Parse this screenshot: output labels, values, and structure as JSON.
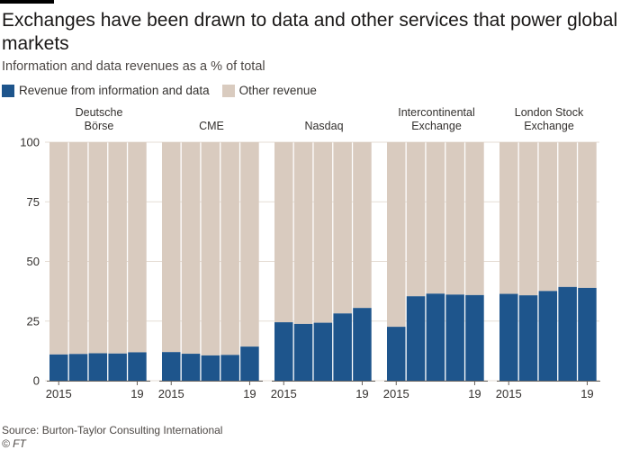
{
  "title": "Exchanges have been drawn to data and other services that power global markets",
  "subtitle": "Information and data revenues as a % of total",
  "legend": {
    "data_label": "Revenue from information and data",
    "other_label": "Other revenue"
  },
  "source": "Source: Burton-Taylor Consulting International",
  "credit": "© FT",
  "colors": {
    "data": "#1e558c",
    "other": "#d9cbbf",
    "grid": "#e6ddd5",
    "axis": "#66605c",
    "text": "#33302e"
  },
  "chart_data": {
    "type": "bar",
    "stacked": true,
    "ylim": [
      0,
      100
    ],
    "yticks": [
      0,
      25,
      50,
      75,
      100
    ],
    "x_tick_labels": [
      "2015",
      "19"
    ],
    "grid": true,
    "legend_position": "top-left",
    "series_names": [
      "Revenue from information and data",
      "Other revenue"
    ],
    "panels": [
      {
        "name_lines": [
          "Deutsche",
          "Börse"
        ],
        "years": [
          "2015",
          "2016",
          "2017",
          "2018",
          "2019"
        ],
        "values": [
          11,
          11.2,
          11.5,
          11.4,
          11.9
        ]
      },
      {
        "name_lines": [
          "CME"
        ],
        "years": [
          "2015",
          "2016",
          "2017",
          "2018",
          "2019"
        ],
        "values": [
          12,
          11.3,
          10.6,
          10.8,
          14.3
        ]
      },
      {
        "name_lines": [
          "Nasdaq"
        ],
        "years": [
          "2015",
          "2016",
          "2017",
          "2018",
          "2019"
        ],
        "values": [
          24.5,
          23.8,
          24.3,
          28.2,
          30.5
        ]
      },
      {
        "name_lines": [
          "Intercontinental",
          "Exchange"
        ],
        "years": [
          "2015",
          "2016",
          "2017",
          "2018",
          "2019"
        ],
        "values": [
          22.6,
          35.4,
          36.5,
          36.1,
          35.9
        ]
      },
      {
        "name_lines": [
          "London Stock",
          "Exchange"
        ],
        "years": [
          "2015",
          "2016",
          "2017",
          "2018",
          "2019"
        ],
        "values": [
          36.4,
          35.8,
          37.6,
          39.3,
          38.9
        ]
      }
    ]
  }
}
